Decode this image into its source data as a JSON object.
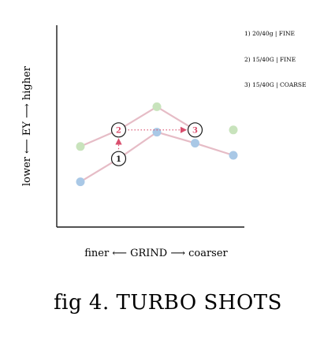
{
  "chart_data": {
    "type": "line",
    "title": "fig 4. TURBO SHOTS",
    "xlabel": "finer ⟵ GRIND ⟶ coarser",
    "ylabel": "lower ⟵ EY ⟶ higher",
    "grid": false,
    "legend_position": "top-right",
    "series": [
      {
        "name": "1) 20/40g | FINE",
        "color": "#e6bcc6",
        "x": [
          1,
          2
        ],
        "y": [
          2.1,
          4.2
        ]
      },
      {
        "name": "2) 15/40G | FINE",
        "color": "#e6bcc6",
        "x": [
          1,
          2,
          3,
          4
        ],
        "y": [
          5.3,
          6.8,
          8.9,
          6.8
        ]
      },
      {
        "name": "3) 15/40G | COARSE",
        "color": "#e6bcc6",
        "x": [
          2,
          3,
          4,
          5
        ],
        "y": [
          4.2,
          6.6,
          5.6,
          4.5
        ]
      }
    ],
    "point_groups": [
      {
        "color": "#a9c8e6",
        "points": [
          [
            1,
            2.1
          ],
          [
            3,
            6.6
          ],
          [
            4,
            5.6
          ],
          [
            5,
            4.5
          ]
        ]
      },
      {
        "color": "#c8e3bc",
        "points": [
          [
            1,
            5.3
          ],
          [
            3,
            8.9
          ],
          [
            5,
            6.8
          ]
        ]
      }
    ],
    "markers": [
      {
        "label": "1",
        "x": 2,
        "y": 4.2
      },
      {
        "label": "2",
        "x": 2,
        "y": 6.8
      },
      {
        "label": "3",
        "x": 4,
        "y": 6.8
      }
    ],
    "arrows": [
      {
        "from": "1",
        "to": "2",
        "color": "#d94f6e"
      },
      {
        "from": "2",
        "to": "3",
        "color": "#d94f6e"
      }
    ],
    "marker_accent": "#d94f6e",
    "legend": [
      "1) 20/40g | FINE",
      "2) 15/40G | FINE",
      "3) 15/40G | COARSE"
    ]
  }
}
